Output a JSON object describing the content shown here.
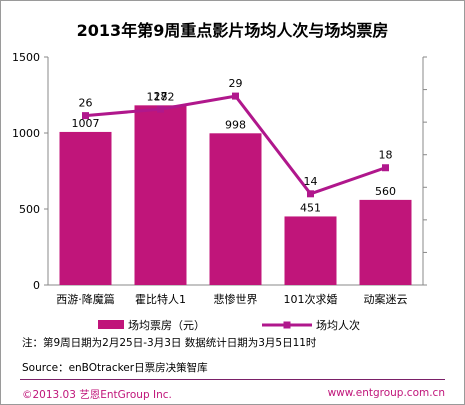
{
  "chart_data": {
    "type": "bar",
    "title": "2013年第9周重点影片场均人次与场均票房",
    "categories": [
      "西游·降魔篇",
      "霍比特人1",
      "悲惨世界",
      "101次求婚",
      "动案迷云"
    ],
    "series": [
      {
        "name": "场均票房（元）",
        "type": "bar",
        "axis": "left",
        "values": [
          1007,
          1182,
          998,
          451,
          560
        ]
      },
      {
        "name": "场均人次",
        "type": "line",
        "axis": "right",
        "values": [
          26,
          27,
          29,
          14,
          18
        ]
      }
    ],
    "ylim": [
      0,
      1500
    ],
    "yticks": [
      0,
      500,
      1000,
      1500
    ],
    "y2lim": [
      0,
      35
    ],
    "y2ticks": [
      0,
      5,
      10,
      15,
      20,
      25,
      30,
      35
    ],
    "legend_position": "bottom",
    "grid": false,
    "colors": {
      "bar": "#c0157a",
      "line": "#b0178c"
    }
  },
  "footer": {
    "note": "注：第9周日期为2月25日-3月3日  数据统计日期为3月5日11时",
    "source": "Source：enBOtracker日票房决策智库",
    "copyright": "©2013.03 艺恩EntGroup Inc.",
    "website": "www.entgroup.com.cn"
  }
}
